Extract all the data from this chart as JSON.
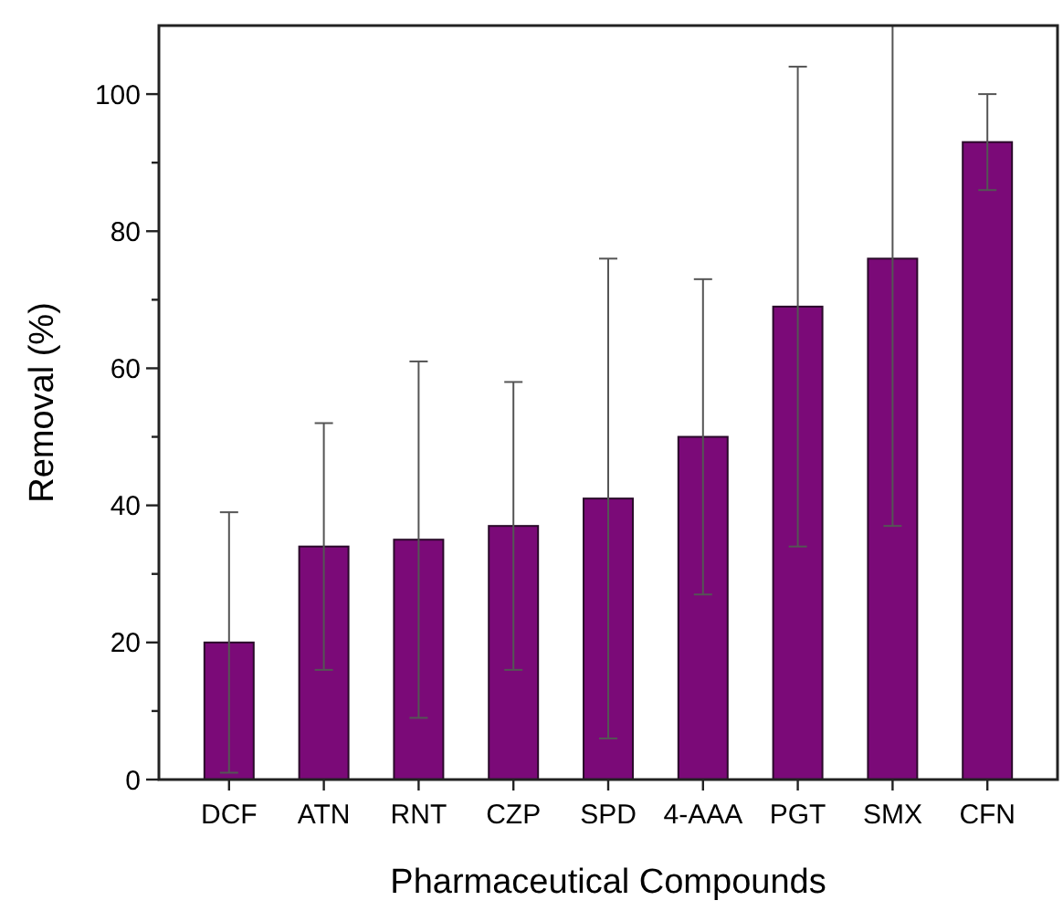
{
  "chart_data": {
    "type": "bar",
    "xlabel": "Pharmaceutical Compounds",
    "ylabel": "Removal (%)",
    "categories": [
      "DCF",
      "ATN",
      "RNT",
      "CZP",
      "SPD",
      "4-AAA",
      "PGT",
      "SMX",
      "CFN"
    ],
    "values": [
      20,
      34,
      35,
      37,
      41,
      50,
      69,
      76,
      93
    ],
    "errors": [
      19,
      18,
      26,
      21,
      35,
      23,
      35,
      [
        37,
        110
      ],
      7
    ],
    "color": "#7b0a78",
    "ylim": [
      0,
      110
    ],
    "yticks": [
      0,
      {
        "value": 10,
        "label": null
      },
      20,
      {
        "value": 30,
        "label": null
      },
      40,
      {
        "value": 50,
        "label": null
      },
      60,
      {
        "value": 70,
        "label": null
      },
      80,
      {
        "value": 90,
        "label": null
      },
      100
    ],
    "grid": false
  }
}
